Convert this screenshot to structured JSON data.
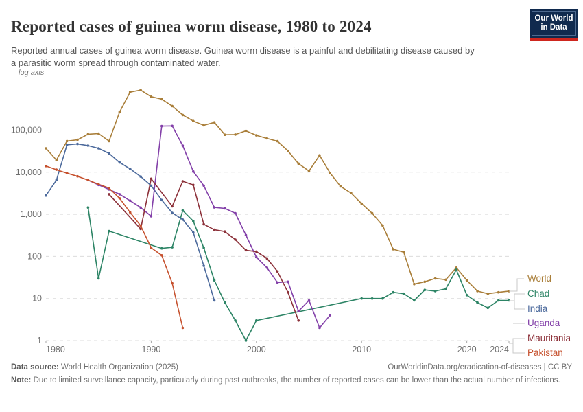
{
  "header": {
    "title": "Reported cases of guinea worm disease, 1980 to 2024",
    "subtitle": "Reported annual cases of guinea worm disease. Guinea worm disease is a painful and debilitating disease caused by a parasitic worm spread through contaminated water.",
    "logo": {
      "line1": "Our World",
      "line2": "in Data"
    }
  },
  "chart_data": {
    "type": "line",
    "title": "Reported cases of guinea worm disease, 1980 to 2024",
    "legend_position": "right",
    "x_axis": {
      "range": [
        1980,
        2024
      ],
      "ticks": [
        1980,
        1990,
        2000,
        2010,
        2020,
        2024
      ],
      "tick_labels": [
        "1980",
        "1990",
        "2000",
        "2010",
        "2020",
        "2024"
      ]
    },
    "y_axis": {
      "scale": "log",
      "label": "log axis",
      "range": [
        1,
        1000000
      ],
      "ticks": [
        1,
        10,
        100,
        1000,
        10000,
        100000
      ],
      "tick_labels": [
        "1",
        "10",
        "100",
        "1,000",
        "10,000",
        "100,000"
      ],
      "grid": true
    },
    "series": [
      {
        "name": "World",
        "color": "#A97E39",
        "points": [
          [
            1980,
            37000
          ],
          [
            1981,
            19500
          ],
          [
            1982,
            55000
          ],
          [
            1983,
            59000
          ],
          [
            1984,
            80000
          ],
          [
            1985,
            83000
          ],
          [
            1986,
            55000
          ],
          [
            1987,
            270000
          ],
          [
            1988,
            800000
          ],
          [
            1989,
            892055
          ],
          [
            1990,
            623844
          ],
          [
            1991,
            543585
          ],
          [
            1992,
            374202
          ],
          [
            1993,
            229773
          ],
          [
            1994,
            164973
          ],
          [
            1995,
            129852
          ],
          [
            1996,
            152814
          ],
          [
            1997,
            77863
          ],
          [
            1998,
            78557
          ],
          [
            1999,
            96293
          ],
          [
            2000,
            75223
          ],
          [
            2001,
            63718
          ],
          [
            2002,
            54638
          ],
          [
            2003,
            32193
          ],
          [
            2004,
            16026
          ],
          [
            2005,
            10674
          ],
          [
            2006,
            25217
          ],
          [
            2007,
            9585
          ],
          [
            2008,
            4619
          ],
          [
            2009,
            3190
          ],
          [
            2010,
            1797
          ],
          [
            2011,
            1058
          ],
          [
            2012,
            542
          ],
          [
            2013,
            148
          ],
          [
            2014,
            126
          ],
          [
            2015,
            22
          ],
          [
            2016,
            25
          ],
          [
            2017,
            30
          ],
          [
            2018,
            28
          ],
          [
            2019,
            54
          ],
          [
            2020,
            27
          ],
          [
            2021,
            15
          ],
          [
            2022,
            13
          ],
          [
            2023,
            14
          ],
          [
            2024,
            15
          ]
        ]
      },
      {
        "name": "Chad",
        "color": "#2C8465",
        "points": [
          [
            1984,
            1450
          ],
          [
            1985,
            30
          ],
          [
            1986,
            400
          ],
          [
            1991,
            155
          ],
          [
            1992,
            165
          ],
          [
            1993,
            1231
          ],
          [
            1994,
            690
          ],
          [
            1995,
            160
          ],
          [
            1996,
            27
          ],
          [
            1997,
            8
          ],
          [
            1998,
            3
          ],
          [
            1999,
            1
          ],
          [
            2000,
            3
          ],
          [
            2010,
            10
          ],
          [
            2011,
            10
          ],
          [
            2012,
            10
          ],
          [
            2013,
            14
          ],
          [
            2014,
            13
          ],
          [
            2015,
            9
          ],
          [
            2016,
            16
          ],
          [
            2017,
            15
          ],
          [
            2018,
            17
          ],
          [
            2019,
            48
          ],
          [
            2020,
            12
          ],
          [
            2021,
            8
          ],
          [
            2022,
            6
          ],
          [
            2023,
            9
          ],
          [
            2024,
            9
          ]
        ]
      },
      {
        "name": "India",
        "color": "#4C6A9C",
        "points": [
          [
            1980,
            2800
          ],
          [
            1981,
            6500
          ],
          [
            1982,
            45000
          ],
          [
            1983,
            47000
          ],
          [
            1984,
            43000
          ],
          [
            1985,
            37000
          ],
          [
            1986,
            28000
          ],
          [
            1987,
            17031
          ],
          [
            1988,
            12023
          ],
          [
            1989,
            7881
          ],
          [
            1990,
            4798
          ],
          [
            1991,
            2185
          ],
          [
            1992,
            1081
          ],
          [
            1993,
            750
          ],
          [
            1994,
            371
          ],
          [
            1995,
            60
          ],
          [
            1996,
            9
          ]
        ]
      },
      {
        "name": "Uganda",
        "color": "#8340A9",
        "points": [
          [
            1984,
            6500
          ],
          [
            1985,
            5000
          ],
          [
            1986,
            3900
          ],
          [
            1987,
            3000
          ],
          [
            1988,
            2100
          ],
          [
            1989,
            1450
          ],
          [
            1990,
            900
          ],
          [
            1991,
            125000
          ],
          [
            1992,
            126369
          ],
          [
            1993,
            42852
          ],
          [
            1994,
            10425
          ],
          [
            1995,
            4810
          ],
          [
            1996,
            1455
          ],
          [
            1997,
            1380
          ],
          [
            1998,
            1060
          ],
          [
            1999,
            321
          ],
          [
            2000,
            96
          ],
          [
            2001,
            54
          ],
          [
            2002,
            24
          ],
          [
            2003,
            25
          ],
          [
            2004,
            5
          ],
          [
            2005,
            9
          ],
          [
            2006,
            2
          ],
          [
            2007,
            4
          ]
        ]
      },
      {
        "name": "Mauritania",
        "color": "#8C3039",
        "points": [
          [
            1986,
            3000
          ],
          [
            1989,
            450
          ],
          [
            1990,
            7000
          ],
          [
            1992,
            1550
          ],
          [
            1993,
            6100
          ],
          [
            1994,
            5000
          ],
          [
            1995,
            580
          ],
          [
            1996,
            430
          ],
          [
            1997,
            390
          ],
          [
            1998,
            250
          ],
          [
            1999,
            140
          ],
          [
            2000,
            130
          ],
          [
            2001,
            90
          ],
          [
            2002,
            44
          ],
          [
            2003,
            14
          ],
          [
            2004,
            3
          ]
        ]
      },
      {
        "name": "Pakistan",
        "color": "#C6512E",
        "points": [
          [
            1980,
            14000
          ],
          [
            1981,
            11500
          ],
          [
            1982,
            9500
          ],
          [
            1983,
            8000
          ],
          [
            1984,
            6500
          ],
          [
            1985,
            5200
          ],
          [
            1986,
            4200
          ],
          [
            1987,
            2400
          ],
          [
            1988,
            1110
          ],
          [
            1989,
            534
          ],
          [
            1990,
            160
          ],
          [
            1991,
            106
          ],
          [
            1992,
            23
          ],
          [
            1993,
            2
          ]
        ]
      }
    ]
  },
  "footer": {
    "data_source_label": "Data source:",
    "data_source_value": "World Health Organization (2025)",
    "attribution": "OurWorldinData.org/eradication-of-diseases | CC BY",
    "note_label": "Note:",
    "note_text": "Due to limited surveillance capacity, particularly during past outbreaks, the number of reported cases can be lower than the actual number of infections."
  }
}
